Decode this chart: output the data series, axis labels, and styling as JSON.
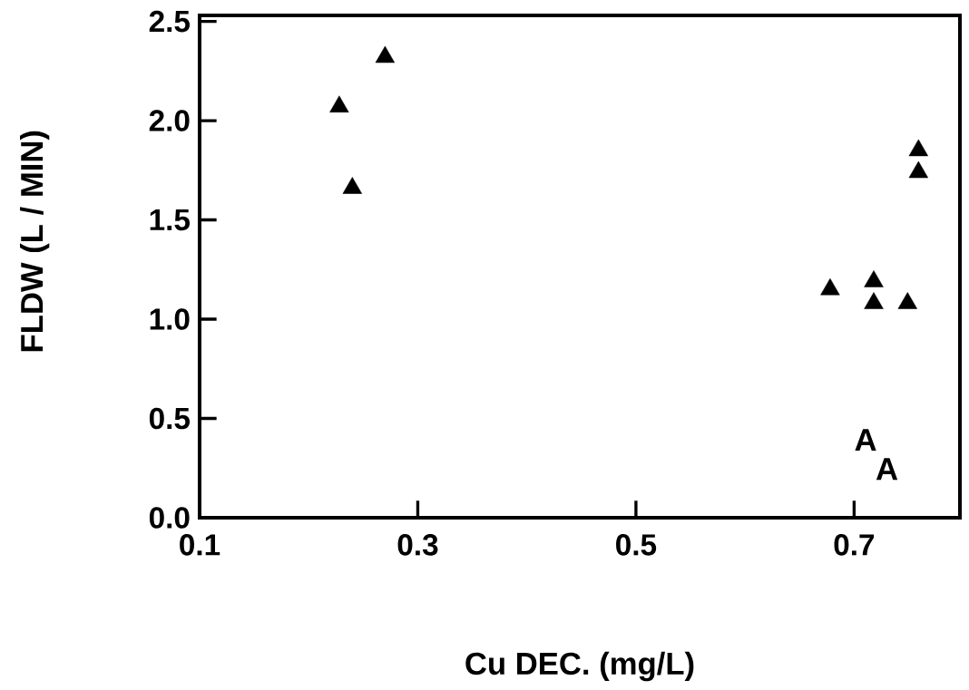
{
  "chart_data": {
    "type": "scatter",
    "xlabel": "Cu DEC. (mg/L)",
    "ylabel": "FLDW (L / MIN)",
    "x": [
      0.27,
      0.228,
      0.24,
      0.678,
      0.718,
      0.718,
      0.749,
      0.759,
      0.759
    ],
    "values": [
      2.32,
      2.07,
      1.66,
      1.15,
      1.19,
      1.08,
      1.08,
      1.85,
      1.74
    ],
    "color": "#000000",
    "marker": "triangle",
    "xlim": [
      0.1,
      0.797
    ],
    "ylim": [
      0,
      2.53
    ],
    "xticks": [
      0.1,
      0.3,
      0.5,
      0.7
    ],
    "yticks": [
      {
        "value": 0,
        "label": "0.0"
      },
      {
        "value": 0.5,
        "label": "0.5"
      },
      {
        "value": 1,
        "label": "1.0"
      },
      {
        "value": 1.5,
        "label": "1.5"
      },
      {
        "value": 2,
        "label": "2.0"
      },
      {
        "value": 2.5,
        "label": "2.5"
      }
    ],
    "annotations": [
      "A",
      "A"
    ]
  }
}
